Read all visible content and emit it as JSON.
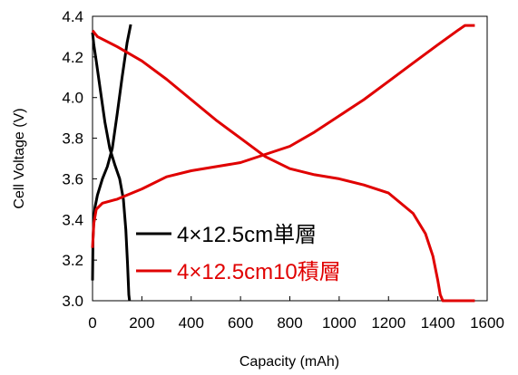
{
  "chart_data": {
    "type": "line",
    "title": "",
    "xlabel": "Capacity (mAh)",
    "ylabel": "Cell Voltage (V)",
    "xlim": [
      0,
      1600
    ],
    "ylim": [
      3.0,
      4.4
    ],
    "grid": false,
    "legend_position": "bottom-left inside plot",
    "x_ticks": [
      "0",
      "200",
      "400",
      "600",
      "800",
      "1000",
      "1200",
      "1400",
      "1600"
    ],
    "y_ticks": [
      "3.0",
      "3.2",
      "3.4",
      "3.6",
      "3.8",
      "4.0",
      "4.2",
      "4.4"
    ],
    "series": [
      {
        "name": "4×12.5cm単層",
        "color": "#000000",
        "curves": [
          {
            "role": "charge",
            "x": [
              0,
              2,
              5,
              10,
              20,
              40,
              60,
              80,
              100,
              120,
              140,
              155
            ],
            "y": [
              3.1,
              3.3,
              3.4,
              3.46,
              3.52,
              3.6,
              3.66,
              3.75,
              3.92,
              4.1,
              4.27,
              4.36
            ]
          },
          {
            "role": "discharge",
            "x": [
              0,
              5,
              15,
              30,
              50,
              70,
              90,
              110,
              125,
              135,
              142,
              147,
              150
            ],
            "y": [
              4.32,
              4.26,
              4.18,
              4.05,
              3.88,
              3.75,
              3.67,
              3.6,
              3.5,
              3.35,
              3.18,
              3.03,
              3.0
            ]
          }
        ]
      },
      {
        "name": "4×12.5cm10積層",
        "color": "#e00000",
        "curves": [
          {
            "role": "charge",
            "x": [
              0,
              5,
              15,
              40,
              100,
              160,
              200,
              300,
              400,
              500,
              600,
              700,
              800,
              900,
              1000,
              1100,
              1200,
              1300,
              1400,
              1480,
              1510,
              1550
            ],
            "y": [
              3.26,
              3.38,
              3.45,
              3.48,
              3.5,
              3.53,
              3.55,
              3.61,
              3.64,
              3.66,
              3.68,
              3.72,
              3.76,
              3.83,
              3.91,
              3.99,
              4.08,
              4.17,
              4.26,
              4.33,
              4.355,
              4.355
            ]
          },
          {
            "role": "discharge",
            "x": [
              0,
              20,
              100,
              200,
              300,
              400,
              500,
              600,
              700,
              800,
              900,
              1000,
              1100,
              1200,
              1300,
              1350,
              1380,
              1400,
              1410,
              1420,
              1480,
              1550
            ],
            "y": [
              4.33,
              4.3,
              4.25,
              4.18,
              4.09,
              3.99,
              3.89,
              3.8,
              3.71,
              3.65,
              3.62,
              3.6,
              3.57,
              3.53,
              3.43,
              3.33,
              3.22,
              3.1,
              3.03,
              3.0,
              3.0,
              3.0
            ]
          }
        ]
      }
    ]
  }
}
